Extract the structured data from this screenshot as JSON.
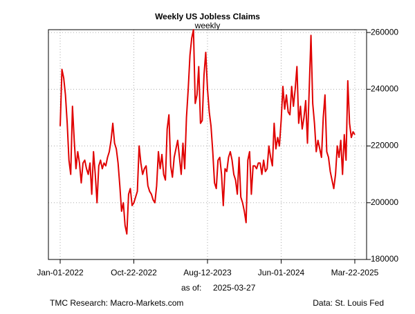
{
  "chart_data": {
    "type": "line",
    "title": "Weekly US Jobless Claims",
    "subtitle": "weekly",
    "as_of_label": "as of:",
    "as_of_date": "2025-03-27",
    "source_left": "TMC Research: Macro-Markets.com",
    "source_right": "Data: St. Louis Fed",
    "grid": true,
    "y_axis_side": "right",
    "xlim": [
      "2021-11-15",
      "2025-05-08"
    ],
    "xticks": [
      {
        "value": "2022-01-01",
        "label": "Jan-01-2022"
      },
      {
        "value": "2022-10-22",
        "label": "Oct-22-2022"
      },
      {
        "value": "2023-08-12",
        "label": "Aug-12-2023"
      },
      {
        "value": "2024-06-01",
        "label": "Jun-01-2024"
      },
      {
        "value": "2025-03-22",
        "label": "Mar-22-2025"
      }
    ],
    "ylim": [
      180000,
      261000
    ],
    "yticks": [
      180000,
      200000,
      220000,
      240000,
      260000
    ],
    "x": [
      "2022-01-01",
      "2022-01-08",
      "2022-01-15",
      "2022-01-22",
      "2022-01-29",
      "2022-02-05",
      "2022-02-12",
      "2022-02-19",
      "2022-02-26",
      "2022-03-05",
      "2022-03-12",
      "2022-03-19",
      "2022-03-26",
      "2022-04-02",
      "2022-04-09",
      "2022-04-16",
      "2022-04-23",
      "2022-04-30",
      "2022-05-07",
      "2022-05-14",
      "2022-05-21",
      "2022-05-28",
      "2022-06-04",
      "2022-06-11",
      "2022-06-18",
      "2022-06-25",
      "2022-07-02",
      "2022-07-09",
      "2022-07-16",
      "2022-07-23",
      "2022-07-30",
      "2022-08-06",
      "2022-08-13",
      "2022-08-20",
      "2022-08-27",
      "2022-09-03",
      "2022-09-10",
      "2022-09-17",
      "2022-09-24",
      "2022-10-01",
      "2022-10-08",
      "2022-10-15",
      "2022-10-22",
      "2022-10-29",
      "2022-11-05",
      "2022-11-12",
      "2022-11-19",
      "2022-11-26",
      "2022-12-03",
      "2022-12-10",
      "2022-12-17",
      "2022-12-24",
      "2022-12-31",
      "2023-01-07",
      "2023-01-14",
      "2023-01-21",
      "2023-01-28",
      "2023-02-04",
      "2023-02-11",
      "2023-02-18",
      "2023-02-25",
      "2023-03-04",
      "2023-03-11",
      "2023-03-18",
      "2023-03-25",
      "2023-04-01",
      "2023-04-08",
      "2023-04-15",
      "2023-04-22",
      "2023-04-29",
      "2023-05-06",
      "2023-05-13",
      "2023-05-20",
      "2023-05-27",
      "2023-06-03",
      "2023-06-10",
      "2023-06-17",
      "2023-06-24",
      "2023-07-01",
      "2023-07-08",
      "2023-07-15",
      "2023-07-22",
      "2023-07-29",
      "2023-08-05",
      "2023-08-12",
      "2023-08-19",
      "2023-08-26",
      "2023-09-02",
      "2023-09-09",
      "2023-09-16",
      "2023-09-23",
      "2023-09-30",
      "2023-10-07",
      "2023-10-14",
      "2023-10-21",
      "2023-10-28",
      "2023-11-04",
      "2023-11-11",
      "2023-11-18",
      "2023-11-25",
      "2023-12-02",
      "2023-12-09",
      "2023-12-16",
      "2023-12-23",
      "2023-12-30",
      "2024-01-06",
      "2024-01-13",
      "2024-01-20",
      "2024-01-27",
      "2024-02-03",
      "2024-02-10",
      "2024-02-17",
      "2024-02-24",
      "2024-03-02",
      "2024-03-09",
      "2024-03-16",
      "2024-03-23",
      "2024-03-30",
      "2024-04-06",
      "2024-04-13",
      "2024-04-20",
      "2024-04-27",
      "2024-05-04",
      "2024-05-11",
      "2024-05-18",
      "2024-05-25",
      "2024-06-01",
      "2024-06-08",
      "2024-06-15",
      "2024-06-22",
      "2024-06-29",
      "2024-07-06",
      "2024-07-13",
      "2024-07-20",
      "2024-07-27",
      "2024-08-03",
      "2024-08-10",
      "2024-08-17",
      "2024-08-24",
      "2024-08-31",
      "2024-09-07",
      "2024-09-14",
      "2024-09-21",
      "2024-09-28",
      "2024-10-05",
      "2024-10-12",
      "2024-10-19",
      "2024-10-26",
      "2024-11-02",
      "2024-11-09",
      "2024-11-16",
      "2024-11-23",
      "2024-11-30",
      "2024-12-07",
      "2024-12-14",
      "2024-12-21",
      "2024-12-28",
      "2025-01-04",
      "2025-01-11",
      "2025-01-18",
      "2025-01-25",
      "2025-02-01",
      "2025-02-08",
      "2025-02-15",
      "2025-02-22",
      "2025-03-01",
      "2025-03-08",
      "2025-03-15",
      "2025-03-22"
    ],
    "series": [
      {
        "name": "weekly",
        "color": "#e00000",
        "values": [
          227000,
          247000,
          244000,
          238000,
          228000,
          215000,
          210000,
          234000,
          222000,
          212000,
          218000,
          214000,
          207000,
          214000,
          215000,
          212000,
          210000,
          214000,
          203000,
          218000,
          210000,
          200000,
          213000,
          215000,
          212000,
          214000,
          213000,
          216000,
          218000,
          222000,
          228000,
          221000,
          219000,
          214000,
          206000,
          197000,
          200000,
          192000,
          189000,
          203000,
          205000,
          199000,
          200000,
          202000,
          204000,
          220000,
          214000,
          210000,
          212000,
          213000,
          206000,
          204000,
          203000,
          201000,
          200000,
          206000,
          218000,
          212000,
          217000,
          210000,
          208000,
          226000,
          231000,
          213000,
          209000,
          216000,
          219000,
          222000,
          216000,
          210000,
          221000,
          212000,
          230000,
          240000,
          252000,
          258000,
          261000,
          235000,
          238000,
          248000,
          228000,
          229000,
          245000,
          253000,
          240000,
          232000,
          227000,
          218000,
          207000,
          205000,
          215000,
          216000,
          210000,
          199000,
          212000,
          211000,
          216000,
          218000,
          215000,
          210000,
          208000,
          203000,
          216000,
          202000,
          200000,
          197000,
          193000,
          215000,
          218000,
          203000,
          213000,
          213000,
          212000,
          214000,
          214000,
          210000,
          215000,
          211000,
          212000,
          220000,
          216000,
          213000,
          228000,
          219000,
          223000,
          220000,
          229000,
          241000,
          233000,
          238000,
          232000,
          231000,
          241000,
          234000,
          240000,
          248000,
          228000,
          234000,
          226000,
          230000,
          236000,
          221000,
          240000,
          259000,
          235000,
          228000,
          218000,
          222000,
          219000,
          216000,
          230000,
          238000,
          218000,
          216000,
          211000,
          208000,
          205000,
          210000,
          220000,
          216000,
          222000,
          210000,
          224000,
          215000,
          243000,
          228000,
          223000,
          225000,
          224000
        ]
      }
    ]
  }
}
